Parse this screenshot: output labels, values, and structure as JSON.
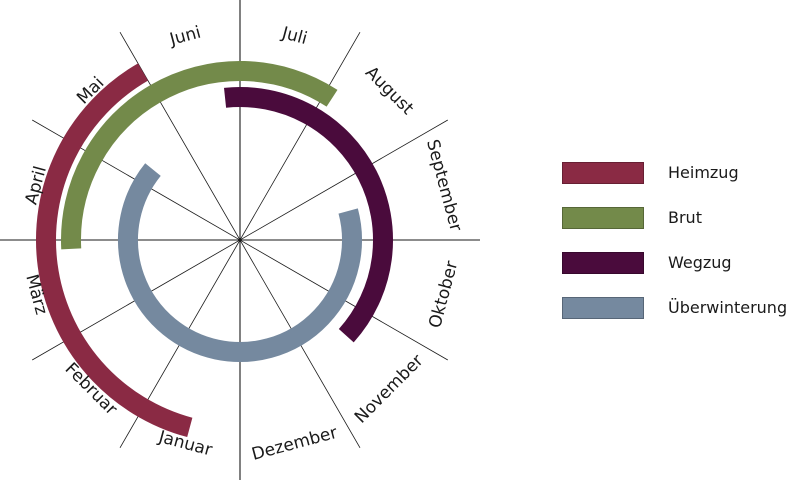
{
  "chart_data": {
    "type": "radial-timeline",
    "months": [
      "Januar",
      "Februar",
      "März",
      "April",
      "Mai",
      "Juni",
      "Juli",
      "August",
      "September",
      "Oktober",
      "November",
      "Dezember"
    ],
    "series": [
      {
        "name": "Heimzug",
        "color": "#8a2a44",
        "start_month": 1.5,
        "end_month": 6.0
      },
      {
        "name": "Brut",
        "color": "#738a4a",
        "start_month": 3.9,
        "end_month": 8.1
      },
      {
        "name": "Wegzug",
        "color": "#4a0b3c",
        "start_month": 6.8,
        "end_month": 11.4
      },
      {
        "name": "Überwinterung",
        "color": "#75899f",
        "start_month": 9.5,
        "end_month": 17.3
      }
    ],
    "legend_position": "right",
    "grid": true
  }
}
